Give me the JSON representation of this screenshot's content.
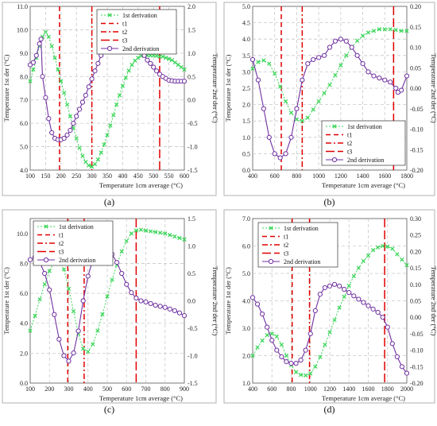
{
  "colors": {
    "first": "#3cd65a",
    "second": "#7030a0",
    "tline": "#e00000",
    "grid": "#c8c8c8"
  },
  "chart_data": [
    {
      "type": "line",
      "caption": "(a)",
      "xlabel": "Temperature 1cm average (°C)",
      "ylabel": "Temperature 1st der (°C)",
      "y2label": "Temperature 2nd der (°C)",
      "xlim": [
        100,
        600
      ],
      "xticks": [
        100,
        150,
        200,
        250,
        300,
        350,
        400,
        450,
        500,
        550,
        600
      ],
      "xtick_labels": [
        "100",
        "150",
        "200",
        "250",
        "300",
        "350",
        "400",
        "450",
        "500",
        "550",
        "600"
      ],
      "ylim": [
        4.0,
        11.0
      ],
      "yticks": [
        4.0,
        5.0,
        6.0,
        7.0,
        8.0,
        9.0,
        10.0,
        11.0
      ],
      "ytick_labels": [
        "4.0",
        "5.0",
        "6.0",
        "7.0",
        "8.0",
        "9.0",
        "10.0",
        "11.0"
      ],
      "y2lim": [
        -1.5,
        2.0
      ],
      "y2ticks": [
        -1.5,
        -1.0,
        -0.5,
        0.0,
        0.5,
        1.0,
        1.5,
        2.0
      ],
      "y2tick_labels": [
        "-1.5",
        "-1.0",
        "-0.5",
        "0.0",
        "0.5",
        "1.0",
        "1.5",
        "2.0"
      ],
      "legend_position": "top-right",
      "legend": [
        "1st derivation",
        "t1",
        "t2",
        "t3",
        "2nd derivation"
      ],
      "vlines": [
        195,
        300,
        520
      ],
      "series": [
        {
          "name": "1st derivation",
          "axis": "left",
          "x": [
            100,
            110,
            120,
            130,
            140,
            150,
            160,
            170,
            180,
            190,
            200,
            210,
            220,
            230,
            240,
            250,
            260,
            270,
            280,
            290,
            300,
            310,
            320,
            330,
            340,
            350,
            360,
            370,
            380,
            390,
            400,
            410,
            420,
            430,
            440,
            450,
            460,
            470,
            480,
            490,
            500,
            510,
            520,
            530,
            540,
            550,
            560,
            570,
            580,
            590,
            600
          ],
          "y": [
            7.8,
            8.3,
            8.8,
            9.3,
            9.7,
            9.9,
            9.7,
            9.3,
            8.8,
            8.3,
            7.8,
            7.3,
            6.8,
            6.3,
            5.8,
            5.35,
            4.95,
            4.6,
            4.35,
            4.2,
            4.15,
            4.25,
            4.45,
            4.75,
            5.1,
            5.5,
            5.9,
            6.35,
            6.8,
            7.2,
            7.6,
            7.95,
            8.25,
            8.5,
            8.68,
            8.8,
            8.88,
            8.9,
            8.9,
            8.9,
            8.9,
            8.88,
            8.85,
            8.85,
            8.8,
            8.75,
            8.7,
            8.6,
            8.5,
            8.4,
            8.3
          ]
        },
        {
          "name": "2nd derivation",
          "axis": "right",
          "x": [
            100,
            110,
            120,
            130,
            135,
            140,
            150,
            160,
            170,
            180,
            190,
            200,
            210,
            220,
            230,
            240,
            250,
            260,
            270,
            280,
            290,
            300,
            310,
            320,
            330,
            340,
            350,
            360,
            370,
            380,
            390,
            400,
            410,
            420,
            430,
            440,
            450,
            460,
            470,
            480,
            490,
            500,
            510,
            520,
            530,
            540,
            550,
            560,
            570,
            580,
            590,
            600
          ],
          "y": [
            0.75,
            0.8,
            0.95,
            1.2,
            1.3,
            0.5,
            0.05,
            -0.4,
            -0.7,
            -0.82,
            -0.85,
            -0.85,
            -0.82,
            -0.75,
            -0.65,
            -0.5,
            -0.35,
            -0.2,
            -0.05,
            0.1,
            0.28,
            0.45,
            0.62,
            0.78,
            0.95,
            1.1,
            1.25,
            1.38,
            1.48,
            1.52,
            1.55,
            1.55,
            1.52,
            1.45,
            1.35,
            1.25,
            1.15,
            1.05,
            0.95,
            0.85,
            0.78,
            0.7,
            0.62,
            0.55,
            0.5,
            0.46,
            0.42,
            0.41,
            0.4,
            0.4,
            0.4,
            0.4
          ]
        }
      ]
    },
    {
      "type": "line",
      "caption": "(b)",
      "xlabel": "Temperature 1cm average (°C)",
      "ylabel": "Temperature 1st der (°C)",
      "y2label": "Temperature 2nd der (°C)",
      "xlim": [
        400,
        1800
      ],
      "xticks": [
        400,
        600,
        800,
        1000,
        1200,
        1400,
        1600,
        1800
      ],
      "xtick_labels": [
        "400",
        "600",
        "800",
        "1000",
        "1200",
        "1400",
        "1600",
        "1800"
      ],
      "ylim": [
        0.0,
        5.0
      ],
      "yticks": [
        0.0,
        0.5,
        1.0,
        1.5,
        2.0,
        2.5,
        3.0,
        3.5,
        4.0,
        4.5,
        5.0
      ],
      "ytick_labels": [
        "0.0",
        "0.5",
        "1.0",
        "1.5",
        "2.0",
        "2.5",
        "3.0",
        "3.5",
        "4.0",
        "4.5",
        "5.0"
      ],
      "y2lim": [
        -0.2,
        0.2
      ],
      "y2ticks": [
        -0.2,
        -0.15,
        -0.1,
        -0.05,
        0.0,
        0.05,
        0.1,
        0.15,
        0.2
      ],
      "y2tick_labels": [
        "-0.20",
        "-0.15",
        "-0.10",
        "-0.05",
        "0.00",
        "0.05",
        "0.10",
        "0.15",
        "0.20"
      ],
      "legend_position": "bottom-right",
      "legend": [
        "1st derivation",
        "t1",
        "t2",
        "t3",
        "2nd derivation"
      ],
      "vlines": [
        660,
        850,
        1680
      ],
      "series": [
        {
          "name": "1st derivation",
          "axis": "left",
          "x": [
            400,
            450,
            500,
            550,
            600,
            650,
            700,
            750,
            800,
            850,
            900,
            950,
            1000,
            1050,
            1100,
            1150,
            1200,
            1250,
            1300,
            1350,
            1400,
            1450,
            1500,
            1550,
            1600,
            1650,
            1700,
            1750,
            1800
          ],
          "y": [
            3.1,
            3.3,
            3.35,
            3.25,
            2.95,
            2.55,
            2.1,
            1.75,
            1.55,
            1.5,
            1.6,
            1.85,
            2.1,
            2.35,
            2.6,
            2.9,
            3.2,
            3.5,
            3.75,
            3.95,
            4.1,
            4.2,
            4.25,
            4.3,
            4.3,
            4.3,
            4.28,
            4.25,
            4.25
          ]
        },
        {
          "name": "2nd derivation",
          "axis": "right",
          "x": [
            400,
            450,
            500,
            550,
            600,
            650,
            700,
            750,
            800,
            850,
            900,
            950,
            1000,
            1050,
            1100,
            1150,
            1200,
            1250,
            1300,
            1350,
            1400,
            1450,
            1500,
            1550,
            1600,
            1650,
            1700,
            1720,
            1750,
            1800
          ],
          "y": [
            0.07,
            0.02,
            -0.05,
            -0.12,
            -0.16,
            -0.17,
            -0.16,
            -0.12,
            -0.05,
            0.02,
            0.06,
            0.07,
            0.075,
            0.08,
            0.1,
            0.115,
            0.12,
            0.115,
            0.1,
            0.08,
            0.06,
            0.04,
            0.03,
            0.025,
            0.02,
            0.015,
            0.0,
            -0.01,
            -0.005,
            0.03
          ]
        }
      ]
    },
    {
      "type": "line",
      "caption": "(c)",
      "xlabel": "Temperature 1cm average (°C)",
      "ylabel": "Temperature 1st der (°C)",
      "y2label": "Temperature 2nd der (°C)",
      "xlim": [
        100,
        900
      ],
      "xticks": [
        100,
        200,
        300,
        400,
        500,
        600,
        700,
        800,
        900
      ],
      "xtick_labels": [
        "100",
        "200",
        "300",
        "400",
        "500",
        "600",
        "700",
        "800",
        "900"
      ],
      "ylim": [
        0.0,
        11.0
      ],
      "yticks": [
        0.0,
        2.0,
        4.0,
        6.0,
        8.0,
        10.0
      ],
      "ytick_labels": [
        "0.0",
        "2.0",
        "4.0",
        "6.0",
        "8.0",
        "10.0"
      ],
      "y2lim": [
        -1.5,
        1.5
      ],
      "y2ticks": [
        -1.5,
        -1.0,
        -0.5,
        0.0,
        0.5,
        1.0,
        1.5
      ],
      "y2tick_labels": [
        "-1.5",
        "-1.0",
        "-0.5",
        "0.0",
        "0.5",
        "1.0",
        "1.5"
      ],
      "legend_position": "bottom-left",
      "legend": [
        "1st derivation",
        "t1",
        "t2",
        "t3",
        "2nd derivation"
      ],
      "vlines": [
        295,
        380,
        650
      ],
      "series": [
        {
          "name": "1st derivation",
          "axis": "left",
          "x": [
            100,
            125,
            150,
            175,
            200,
            225,
            250,
            275,
            300,
            325,
            350,
            375,
            400,
            425,
            450,
            475,
            500,
            525,
            550,
            575,
            600,
            625,
            650,
            675,
            700,
            725,
            750,
            775,
            800,
            825,
            850,
            875,
            900
          ],
          "y": [
            3.5,
            4.5,
            5.6,
            6.6,
            7.5,
            8.1,
            8.2,
            7.6,
            6.3,
            4.8,
            3.3,
            2.3,
            2.1,
            2.6,
            3.5,
            4.6,
            5.8,
            6.9,
            7.9,
            8.8,
            9.5,
            10.0,
            10.2,
            10.25,
            10.2,
            10.15,
            10.1,
            10.05,
            10.0,
            9.9,
            9.8,
            9.7,
            9.6
          ]
        },
        {
          "name": "2nd derivation",
          "axis": "right",
          "x": [
            100,
            125,
            150,
            175,
            200,
            225,
            250,
            275,
            300,
            325,
            350,
            375,
            400,
            425,
            450,
            475,
            500,
            525,
            550,
            575,
            600,
            625,
            650,
            675,
            700,
            725,
            750,
            775,
            800,
            825,
            850,
            875,
            900
          ],
          "y": [
            0.75,
            0.8,
            0.7,
            0.5,
            0.2,
            -0.25,
            -0.7,
            -1.0,
            -1.1,
            -0.95,
            -0.55,
            0.0,
            0.45,
            0.75,
            0.9,
            0.95,
            0.95,
            0.85,
            0.7,
            0.5,
            0.3,
            0.15,
            0.05,
            0.0,
            -0.02,
            -0.05,
            -0.08,
            -0.1,
            -0.12,
            -0.15,
            -0.18,
            -0.22,
            -0.27
          ]
        }
      ]
    },
    {
      "type": "line",
      "caption": "(d)",
      "xlabel": "Temperature 1cm average (°C)",
      "ylabel": "Temperature 1st der (°C)",
      "y2label": "Temperature 2nd der (°C)",
      "xlim": [
        400,
        2000
      ],
      "xticks": [
        400,
        600,
        800,
        1000,
        1200,
        1400,
        1600,
        1800,
        2000
      ],
      "xtick_labels": [
        "400",
        "600",
        "800",
        "1000",
        "1200",
        "1400",
        "1600",
        "1800",
        "2000"
      ],
      "ylim": [
        1.0,
        7.0
      ],
      "yticks": [
        1.0,
        2.0,
        3.0,
        4.0,
        5.0,
        6.0,
        7.0
      ],
      "ytick_labels": [
        "1.0",
        "2.0",
        "3.0",
        "4.0",
        "5.0",
        "6.0",
        "7.0"
      ],
      "y2lim": [
        -0.2,
        0.3
      ],
      "y2ticks": [
        -0.2,
        -0.15,
        -0.1,
        -0.05,
        0.0,
        0.05,
        0.1,
        0.15,
        0.2,
        0.25,
        0.3
      ],
      "y2tick_labels": [
        "-0.20",
        "-0.15",
        "-0.10",
        "-0.05",
        "0.00",
        "0.05",
        "0.10",
        "0.15",
        "0.20",
        "0.25",
        "0.30"
      ],
      "legend_position": "top-left",
      "legend": [
        "1st derivation",
        "t1",
        "t2",
        "t3",
        "2nd derivation"
      ],
      "vlines": [
        810,
        990,
        1770
      ],
      "series": [
        {
          "name": "1st derivation",
          "axis": "left",
          "x": [
            400,
            450,
            500,
            550,
            600,
            650,
            700,
            750,
            800,
            850,
            900,
            950,
            1000,
            1050,
            1100,
            1150,
            1200,
            1250,
            1300,
            1350,
            1400,
            1450,
            1500,
            1550,
            1600,
            1650,
            1700,
            1750,
            1800,
            1850,
            1900,
            1950,
            2000
          ],
          "y": [
            2.0,
            2.3,
            2.55,
            2.75,
            2.8,
            2.7,
            2.4,
            2.0,
            1.65,
            1.4,
            1.3,
            1.28,
            1.35,
            1.6,
            1.95,
            2.4,
            2.85,
            3.3,
            3.75,
            4.15,
            4.55,
            4.9,
            5.2,
            5.45,
            5.65,
            5.85,
            5.95,
            6.0,
            5.98,
            5.9,
            5.7,
            5.5,
            5.3
          ]
        },
        {
          "name": "2nd derivation",
          "axis": "right",
          "x": [
            400,
            450,
            500,
            550,
            600,
            650,
            700,
            750,
            800,
            850,
            900,
            950,
            1000,
            1050,
            1100,
            1150,
            1200,
            1250,
            1300,
            1350,
            1400,
            1450,
            1500,
            1550,
            1600,
            1650,
            1700,
            1750,
            1800,
            1850,
            1900,
            1950,
            2000
          ],
          "y": [
            0.06,
            0.04,
            0.01,
            -0.03,
            -0.07,
            -0.1,
            -0.12,
            -0.135,
            -0.14,
            -0.14,
            -0.13,
            -0.1,
            -0.05,
            0.02,
            0.07,
            0.09,
            0.095,
            0.1,
            0.095,
            0.085,
            0.075,
            0.065,
            0.055,
            0.045,
            0.035,
            0.025,
            0.015,
            0.0,
            -0.03,
            -0.08,
            -0.12,
            -0.15,
            -0.17
          ]
        }
      ]
    }
  ]
}
